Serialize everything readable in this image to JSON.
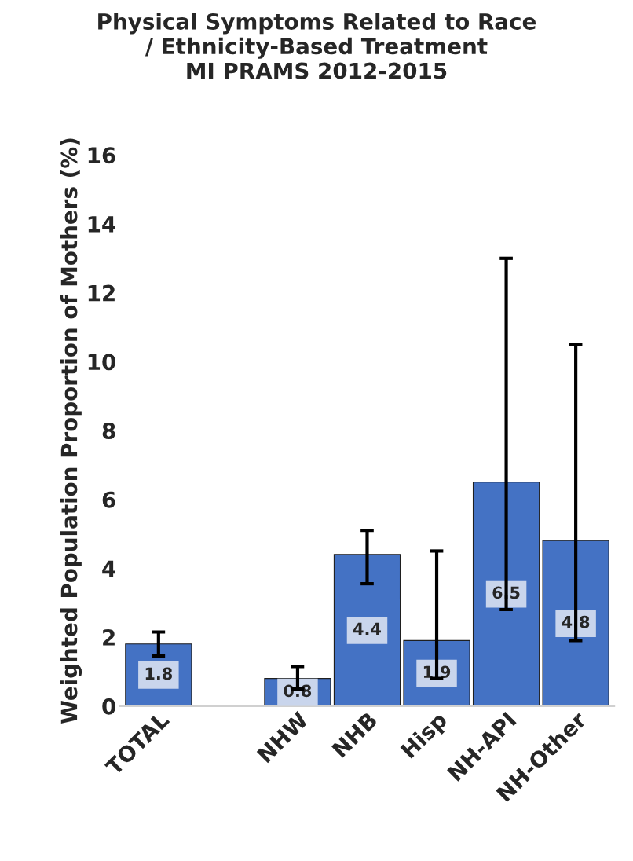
{
  "chart_data": {
    "type": "bar",
    "title": "Physical Symptoms Related to Race\n/ Ethnicity-Based Treatment\nMI PRAMS 2012-2015",
    "ylabel": "Weighted Population Proportion of Mothers (%)",
    "categories": [
      "TOTAL",
      null,
      "NHW",
      "NHB",
      "Hisp",
      "NH-API",
      "NH-Other"
    ],
    "values": [
      1.8,
      null,
      0.8,
      4.4,
      1.9,
      6.5,
      4.8
    ],
    "errors": [
      [
        1.45,
        2.15
      ],
      null,
      [
        0.5,
        1.15
      ],
      [
        3.55,
        5.1
      ],
      [
        0.8,
        4.5
      ],
      [
        2.8,
        13.0
      ],
      [
        1.9,
        10.5
      ]
    ],
    "color": "#4472c4",
    "ylim": [
      0,
      16
    ],
    "yticks": [
      0,
      2,
      4,
      6,
      8,
      10,
      12,
      14,
      16
    ],
    "data_labels": true,
    "grid": false,
    "legend": false
  }
}
